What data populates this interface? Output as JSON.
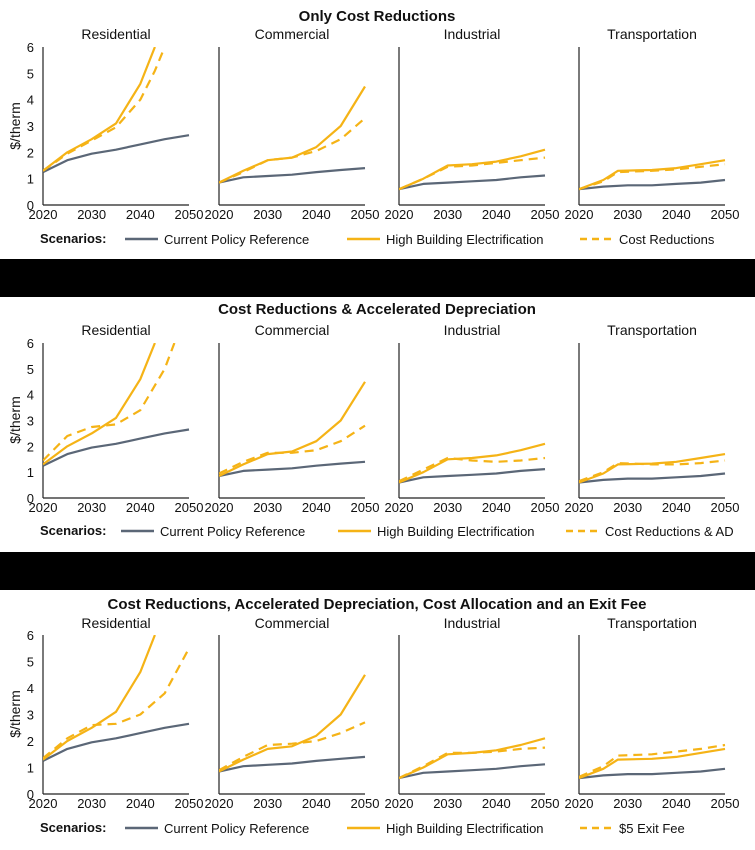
{
  "colors": {
    "reference": "#5b6777",
    "electrification": "#f5b316",
    "scenario": "#f5b316"
  },
  "legend_heading": "Scenarios:",
  "chart_data": [
    {
      "type": "line",
      "title": "Only Cost Reductions",
      "ylabel": "$/therm",
      "ylim": [
        0,
        6
      ],
      "yticks": [
        "0",
        "1",
        "2",
        "3",
        "4",
        "5",
        "6"
      ],
      "xticks": [
        "2020",
        "2030",
        "2040",
        "2050"
      ],
      "xlim": [
        2020,
        2050
      ],
      "legend": [
        "Current Policy Reference",
        "High Building Electrification",
        "Cost Reductions"
      ],
      "subplots": [
        {
          "title": "Residential",
          "series": [
            {
              "x": [
                2020,
                2025,
                2030,
                2035,
                2040,
                2045,
                2050
              ],
              "y": [
                1.25,
                1.7,
                1.95,
                2.1,
                2.3,
                2.5,
                2.65
              ]
            },
            {
              "x": [
                2020,
                2025,
                2030,
                2035,
                2040,
                2043
              ],
              "y": [
                1.3,
                2.0,
                2.5,
                3.1,
                4.6,
                6.0
              ]
            },
            {
              "x": [
                2020,
                2025,
                2030,
                2035,
                2040,
                2043,
                2045
              ],
              "y": [
                1.3,
                1.95,
                2.45,
                2.95,
                4.0,
                5.1,
                6.0
              ]
            }
          ]
        },
        {
          "title": "Commercial",
          "series": [
            {
              "x": [
                2020,
                2025,
                2030,
                2035,
                2040,
                2045,
                2050
              ],
              "y": [
                0.85,
                1.05,
                1.1,
                1.15,
                1.25,
                1.33,
                1.4
              ]
            },
            {
              "x": [
                2020,
                2025,
                2030,
                2035,
                2040,
                2045,
                2050
              ],
              "y": [
                0.85,
                1.3,
                1.7,
                1.8,
                2.2,
                3.0,
                4.5
              ]
            },
            {
              "x": [
                2020,
                2025,
                2030,
                2035,
                2040,
                2045,
                2050
              ],
              "y": [
                0.85,
                1.25,
                1.7,
                1.8,
                2.05,
                2.5,
                3.3
              ]
            }
          ]
        },
        {
          "title": "Industrial",
          "series": [
            {
              "x": [
                2020,
                2025,
                2030,
                2035,
                2040,
                2045,
                2050
              ],
              "y": [
                0.6,
                0.8,
                0.85,
                0.9,
                0.95,
                1.05,
                1.12
              ]
            },
            {
              "x": [
                2020,
                2025,
                2030,
                2035,
                2040,
                2045,
                2050
              ],
              "y": [
                0.6,
                1.0,
                1.5,
                1.55,
                1.65,
                1.85,
                2.1
              ]
            },
            {
              "x": [
                2020,
                2025,
                2030,
                2035,
                2040,
                2045,
                2050
              ],
              "y": [
                0.6,
                1.0,
                1.45,
                1.5,
                1.6,
                1.7,
                1.8
              ]
            }
          ]
        },
        {
          "title": "Transportation",
          "series": [
            {
              "x": [
                2020,
                2025,
                2030,
                2035,
                2040,
                2045,
                2050
              ],
              "y": [
                0.6,
                0.7,
                0.75,
                0.75,
                0.8,
                0.85,
                0.95
              ]
            },
            {
              "x": [
                2020,
                2025,
                2028,
                2035,
                2040,
                2045,
                2050
              ],
              "y": [
                0.6,
                0.95,
                1.3,
                1.33,
                1.4,
                1.55,
                1.7
              ]
            },
            {
              "x": [
                2020,
                2025,
                2028,
                2035,
                2040,
                2045,
                2050
              ],
              "y": [
                0.6,
                0.9,
                1.25,
                1.3,
                1.35,
                1.45,
                1.55
              ]
            }
          ]
        }
      ]
    },
    {
      "type": "line",
      "title": "Cost Reductions & Accelerated Depreciation",
      "ylabel": "$/therm",
      "ylim": [
        0,
        6
      ],
      "yticks": [
        "0",
        "1",
        "2",
        "3",
        "4",
        "5",
        "6"
      ],
      "xticks": [
        "2020",
        "2030",
        "2040",
        "2050"
      ],
      "xlim": [
        2020,
        2050
      ],
      "legend": [
        "Current Policy Reference",
        "High Building Electrification",
        "Cost Reductions & AD"
      ],
      "subplots": [
        {
          "title": "Residential",
          "series": [
            {
              "x": [
                2020,
                2025,
                2030,
                2035,
                2040,
                2045,
                2050
              ],
              "y": [
                1.25,
                1.7,
                1.95,
                2.1,
                2.3,
                2.5,
                2.65
              ]
            },
            {
              "x": [
                2020,
                2025,
                2030,
                2035,
                2040,
                2043
              ],
              "y": [
                1.3,
                2.0,
                2.5,
                3.1,
                4.6,
                6.0
              ]
            },
            {
              "x": [
                2020,
                2025,
                2030,
                2035,
                2040,
                2045,
                2047
              ],
              "y": [
                1.45,
                2.4,
                2.75,
                2.85,
                3.4,
                5.0,
                6.0
              ]
            }
          ]
        },
        {
          "title": "Commercial",
          "series": [
            {
              "x": [
                2020,
                2025,
                2030,
                2035,
                2040,
                2045,
                2050
              ],
              "y": [
                0.85,
                1.05,
                1.1,
                1.15,
                1.25,
                1.33,
                1.4
              ]
            },
            {
              "x": [
                2020,
                2025,
                2030,
                2035,
                2040,
                2045,
                2050
              ],
              "y": [
                0.85,
                1.3,
                1.7,
                1.8,
                2.2,
                3.0,
                4.5
              ]
            },
            {
              "x": [
                2020,
                2025,
                2030,
                2035,
                2040,
                2045,
                2050
              ],
              "y": [
                0.95,
                1.4,
                1.75,
                1.75,
                1.85,
                2.2,
                2.8
              ]
            }
          ]
        },
        {
          "title": "Industrial",
          "series": [
            {
              "x": [
                2020,
                2025,
                2030,
                2035,
                2040,
                2045,
                2050
              ],
              "y": [
                0.6,
                0.8,
                0.85,
                0.9,
                0.95,
                1.05,
                1.12
              ]
            },
            {
              "x": [
                2020,
                2025,
                2030,
                2035,
                2040,
                2045,
                2050
              ],
              "y": [
                0.6,
                1.0,
                1.5,
                1.55,
                1.65,
                1.85,
                2.1
              ]
            },
            {
              "x": [
                2020,
                2025,
                2030,
                2035,
                2040,
                2045,
                2050
              ],
              "y": [
                0.65,
                1.1,
                1.55,
                1.45,
                1.4,
                1.45,
                1.55
              ]
            }
          ]
        },
        {
          "title": "Transportation",
          "series": [
            {
              "x": [
                2020,
                2025,
                2030,
                2035,
                2040,
                2045,
                2050
              ],
              "y": [
                0.6,
                0.7,
                0.75,
                0.75,
                0.8,
                0.85,
                0.95
              ]
            },
            {
              "x": [
                2020,
                2025,
                2028,
                2035,
                2040,
                2045,
                2050
              ],
              "y": [
                0.6,
                0.95,
                1.3,
                1.33,
                1.4,
                1.55,
                1.7
              ]
            },
            {
              "x": [
                2020,
                2025,
                2028,
                2035,
                2040,
                2045,
                2050
              ],
              "y": [
                0.65,
                1.0,
                1.35,
                1.3,
                1.3,
                1.35,
                1.45
              ]
            }
          ]
        }
      ]
    },
    {
      "type": "line",
      "title": "Cost Reductions, Accelerated Depreciation, Cost Allocation and an Exit Fee",
      "ylabel": "$/therm",
      "ylim": [
        0,
        6
      ],
      "yticks": [
        "0",
        "1",
        "2",
        "3",
        "4",
        "5",
        "6"
      ],
      "xticks": [
        "2020",
        "2030",
        "2040",
        "2050"
      ],
      "xlim": [
        2020,
        2050
      ],
      "legend": [
        "Current Policy Reference",
        "High Building Electrification",
        "$5 Exit Fee"
      ],
      "subplots": [
        {
          "title": "Residential",
          "series": [
            {
              "x": [
                2020,
                2025,
                2030,
                2035,
                2040,
                2045,
                2050
              ],
              "y": [
                1.25,
                1.7,
                1.95,
                2.1,
                2.3,
                2.5,
                2.65
              ]
            },
            {
              "x": [
                2020,
                2025,
                2030,
                2035,
                2040,
                2043
              ],
              "y": [
                1.3,
                2.0,
                2.5,
                3.1,
                4.6,
                6.0
              ]
            },
            {
              "x": [
                2020,
                2025,
                2030,
                2035,
                2040,
                2045,
                2050
              ],
              "y": [
                1.35,
                2.1,
                2.6,
                2.65,
                3.0,
                3.8,
                5.5
              ]
            }
          ]
        },
        {
          "title": "Commercial",
          "series": [
            {
              "x": [
                2020,
                2025,
                2030,
                2035,
                2040,
                2045,
                2050
              ],
              "y": [
                0.85,
                1.05,
                1.1,
                1.15,
                1.25,
                1.33,
                1.4
              ]
            },
            {
              "x": [
                2020,
                2025,
                2030,
                2035,
                2040,
                2045,
                2050
              ],
              "y": [
                0.85,
                1.3,
                1.7,
                1.8,
                2.2,
                3.0,
                4.5
              ]
            },
            {
              "x": [
                2020,
                2025,
                2030,
                2035,
                2040,
                2045,
                2050
              ],
              "y": [
                0.9,
                1.4,
                1.85,
                1.9,
                2.0,
                2.3,
                2.7
              ]
            }
          ]
        },
        {
          "title": "Industrial",
          "series": [
            {
              "x": [
                2020,
                2025,
                2030,
                2035,
                2040,
                2045,
                2050
              ],
              "y": [
                0.6,
                0.8,
                0.85,
                0.9,
                0.95,
                1.05,
                1.12
              ]
            },
            {
              "x": [
                2020,
                2025,
                2030,
                2035,
                2040,
                2045,
                2050
              ],
              "y": [
                0.6,
                1.0,
                1.5,
                1.55,
                1.65,
                1.85,
                2.1
              ]
            },
            {
              "x": [
                2020,
                2025,
                2030,
                2035,
                2040,
                2045,
                2050
              ],
              "y": [
                0.6,
                1.05,
                1.55,
                1.55,
                1.6,
                1.7,
                1.75
              ]
            }
          ]
        },
        {
          "title": "Transportation",
          "series": [
            {
              "x": [
                2020,
                2025,
                2030,
                2035,
                2040,
                2045,
                2050
              ],
              "y": [
                0.6,
                0.7,
                0.75,
                0.75,
                0.8,
                0.85,
                0.95
              ]
            },
            {
              "x": [
                2020,
                2025,
                2028,
                2035,
                2040,
                2045,
                2050
              ],
              "y": [
                0.6,
                0.95,
                1.3,
                1.33,
                1.4,
                1.55,
                1.7
              ]
            },
            {
              "x": [
                2020,
                2025,
                2028,
                2035,
                2040,
                2045,
                2050
              ],
              "y": [
                0.65,
                1.05,
                1.45,
                1.5,
                1.6,
                1.7,
                1.85
              ]
            }
          ]
        }
      ]
    }
  ]
}
